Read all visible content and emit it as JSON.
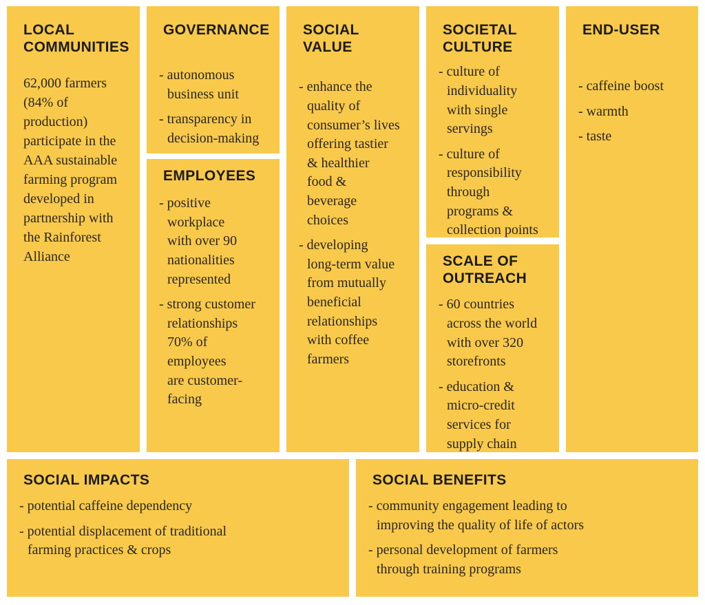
{
  "colors": {
    "panel_background": "#f8c94b",
    "page_background": "#ffffff",
    "heading_text": "#1c1b17",
    "body_text": "#2a261c"
  },
  "panels": {
    "local_communities": {
      "title": "LOCAL\nCOMMUNITIES",
      "body": "62,000 farmers\n(84% of\nproduction)\nparticipate in the\nAAA sustainable\nfarming program\ndeveloped in\npartnership with\nthe Rainforest\nAlliance"
    },
    "governance": {
      "title": "GOVERNANCE",
      "bullets": [
        "- autonomous\nbusiness unit",
        "- transparency in\ndecision-making"
      ]
    },
    "employees": {
      "title": "EMPLOYEES",
      "bullets": [
        "- positive\nworkplace\nwith over 90\nnationalities\nrepresented",
        "- strong customer\nrelationships\n70% of\nemployees\nare customer-\nfacing"
      ]
    },
    "social_value": {
      "title": "SOCIAL\nVALUE",
      "bullets": [
        "- enhance the\nquality of\nconsumer’s lives\noffering tastier\n& healthier\nfood &\nbeverage\nchoices",
        "- developing\nlong-term value\nfrom mutually\nbeneficial\nrelationships\nwith coffee\nfarmers"
      ]
    },
    "societal_culture": {
      "title": "SOCIETAL\nCULTURE",
      "bullets": [
        "- culture of\nindividuality\nwith single\nservings",
        "- culture of\nresponsibility\nthrough\nprograms &\ncollection points"
      ]
    },
    "scale_of_outreach": {
      "title": "SCALE OF\nOUTREACH",
      "bullets": [
        "- 60 countries\nacross the world\nwith over 320\nstorefronts",
        "- education &\nmicro-credit\nservices for\nsupply chain"
      ]
    },
    "end_user": {
      "title": "END-USER",
      "bullets": [
        "- caffeine boost",
        "- warmth",
        "- taste"
      ]
    },
    "social_impacts": {
      "title": "SOCIAL IMPACTS",
      "bullets": [
        "- potential caffeine dependency",
        "- potential displacement of traditional\nfarming practices & crops"
      ]
    },
    "social_benefits": {
      "title": "SOCIAL BENEFITS",
      "bullets": [
        "- community engagement leading to\nimproving the quality of life of actors",
        "- personal development of farmers\nthrough training programs"
      ]
    }
  }
}
